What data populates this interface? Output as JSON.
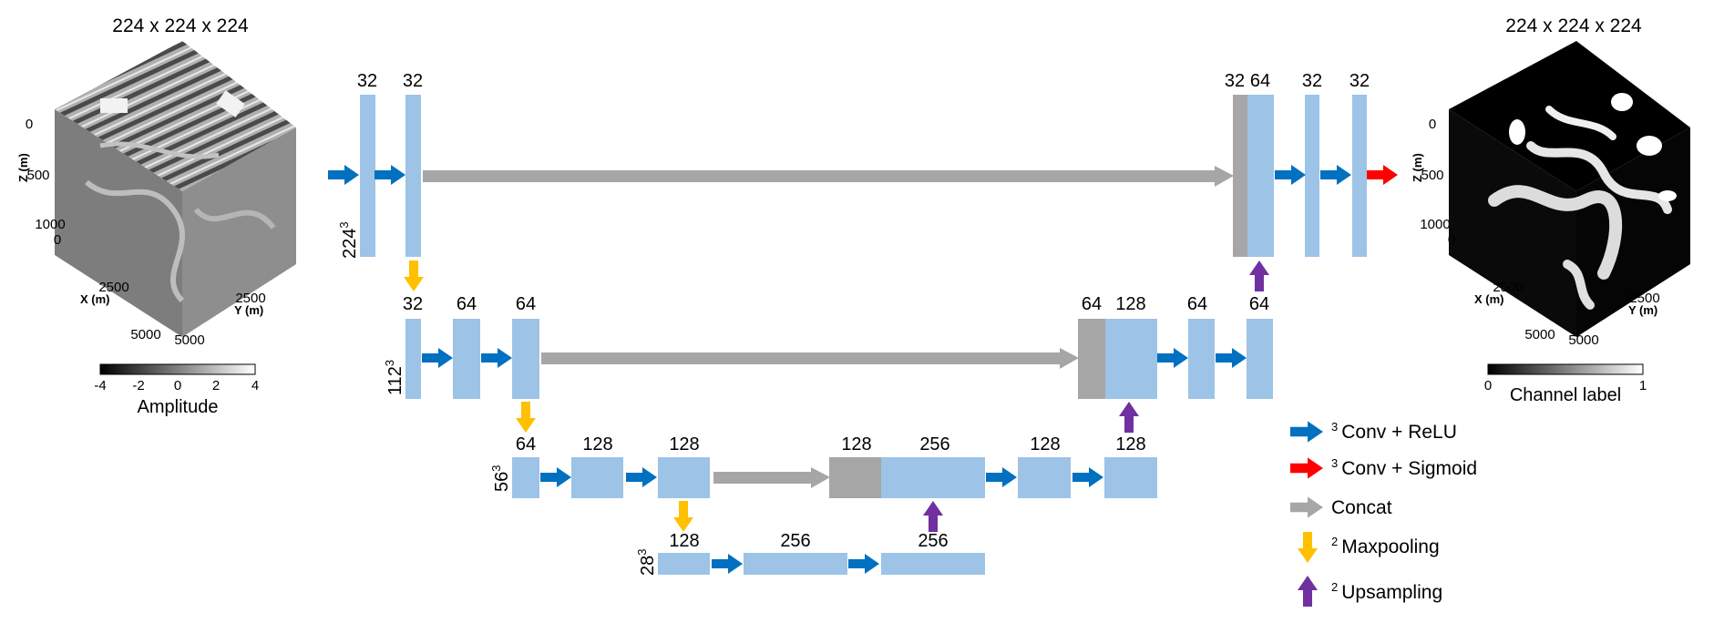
{
  "input": {
    "title": "224 x 224 x 224",
    "axes": {
      "z_label": "Z (m)",
      "x_label": "X (m)",
      "y_label": "Y (m)",
      "z_ticks": [
        "0",
        "500",
        "1000"
      ],
      "x_ticks": [
        "0",
        "2500",
        "5000"
      ],
      "y_ticks": [
        "2500",
        "5000"
      ]
    },
    "colorbar": {
      "ticks": [
        "-4",
        "-2",
        "0",
        "2",
        "4"
      ],
      "label": "Amplitude"
    }
  },
  "output": {
    "title": "224 x 224 x 224",
    "axes": {
      "z_label": "Z (m)",
      "x_label": "X (m)",
      "y_label": "Y (m)",
      "z_ticks": [
        "0",
        "500",
        "1000"
      ],
      "x_ticks": [
        "0",
        "2500",
        "5000"
      ],
      "y_ticks": [
        "2500",
        "5000"
      ]
    },
    "colorbar": {
      "ticks": [
        "0",
        "1"
      ],
      "label": "Channel label"
    }
  },
  "levels": {
    "l1": {
      "res_base": "224",
      "res_exp": "3",
      "channels": [
        "32",
        "32",
        "32",
        "64",
        "32",
        "32"
      ]
    },
    "l2": {
      "res_base": "112",
      "res_exp": "3",
      "channels": [
        "32",
        "64",
        "64",
        "64",
        "128",
        "64",
        "64"
      ]
    },
    "l3": {
      "res_base": "56",
      "res_exp": "3",
      "channels": [
        "64",
        "128",
        "128",
        "128",
        "256",
        "128",
        "128"
      ]
    },
    "l4": {
      "res_base": "28",
      "res_exp": "3",
      "channels": [
        "128",
        "256",
        "256"
      ]
    }
  },
  "legend": {
    "conv_relu": {
      "sup": "3",
      "label": "Conv + ReLU"
    },
    "conv_sigmoid": {
      "sup": "3",
      "label": "Conv + Sigmoid"
    },
    "concat": {
      "label": "Concat"
    },
    "maxpool": {
      "sup": "2",
      "label": "Maxpooling"
    },
    "upsample": {
      "sup": "2",
      "label": "Upsampling"
    }
  },
  "colors": {
    "feature_map": "#9dc3e6",
    "concat_block": "#a6a6a6",
    "conv_arrow": "#0070c0",
    "sigmoid_arrow": "#ff0000",
    "concat_arrow": "#a6a6a6",
    "pool_arrow": "#ffc000",
    "upsample_arrow": "#7030a0"
  }
}
